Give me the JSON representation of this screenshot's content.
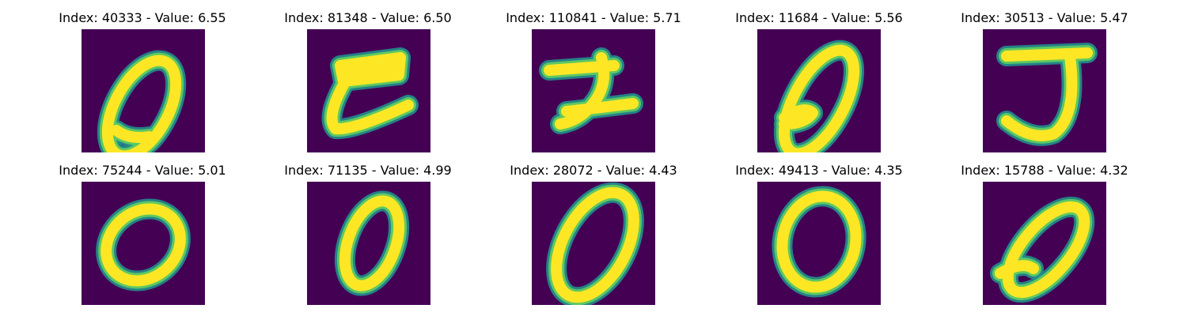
{
  "colors": {
    "background": "#440154",
    "mid_low": "#31688e",
    "mid": "#21908d",
    "mid_high": "#5dc863",
    "foreground": "#fde725"
  },
  "panels": [
    {
      "title": "Index: 40333 - Value: 6.55",
      "index": 40333,
      "value": 6.55,
      "digit": "0"
    },
    {
      "title": "Index: 81348 - Value: 6.50",
      "index": 81348,
      "value": 6.5,
      "digit": "E"
    },
    {
      "title": "Index: 110841 - Value: 5.71",
      "index": 110841,
      "value": 5.71,
      "digit": "2"
    },
    {
      "title": "Index: 11684 - Value: 5.56",
      "index": 11684,
      "value": 5.56,
      "digit": "0"
    },
    {
      "title": "Index: 30513 - Value: 5.47",
      "index": 30513,
      "value": 5.47,
      "digit": "J"
    },
    {
      "title": "Index: 75244 - Value: 5.01",
      "index": 75244,
      "value": 5.01,
      "digit": "0"
    },
    {
      "title": "Index: 71135 - Value: 4.99",
      "index": 71135,
      "value": 4.99,
      "digit": "0"
    },
    {
      "title": "Index: 28072 - Value: 4.43",
      "index": 28072,
      "value": 4.43,
      "digit": "0"
    },
    {
      "title": "Index: 49413 - Value: 4.35",
      "index": 49413,
      "value": 4.35,
      "digit": "0"
    },
    {
      "title": "Index: 15788 - Value: 4.32",
      "index": 15788,
      "value": 4.32,
      "digit": "0"
    }
  ]
}
